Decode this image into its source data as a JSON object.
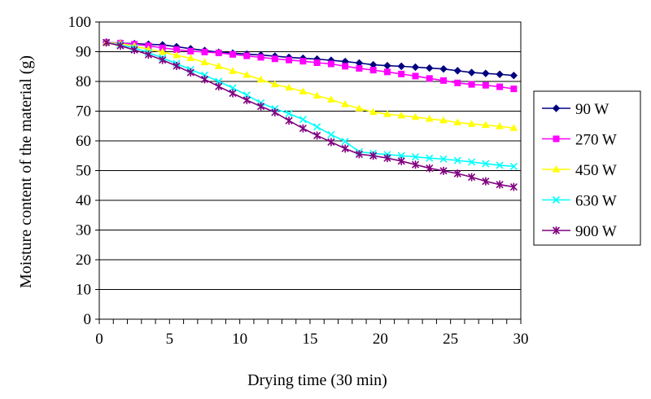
{
  "chart_data": {
    "type": "line",
    "xlabel": "Drying time (30 min)",
    "ylabel": "Moisture content of the material (g)",
    "xlim": [
      0,
      30
    ],
    "ylim": [
      0,
      100
    ],
    "xticks": [
      "0",
      "5",
      "10",
      "15",
      "20",
      "25",
      "30"
    ],
    "yticks": [
      "0",
      "10",
      "20",
      "30",
      "40",
      "50",
      "60",
      "70",
      "80",
      "90",
      "100"
    ],
    "grid": "horizontal",
    "legend_position": "right",
    "x": [
      0.5,
      1.5,
      2.5,
      3.5,
      4.5,
      5.5,
      6.5,
      7.5,
      8.5,
      9.5,
      10.5,
      11.5,
      12.5,
      13.5,
      14.5,
      15.5,
      16.5,
      17.5,
      18.5,
      19.5,
      20.5,
      21.5,
      22.5,
      23.5,
      24.5,
      25.5,
      26.5,
      27.5,
      28.5,
      29.5
    ],
    "series": [
      {
        "name": "90 W",
        "color": "#000080",
        "marker": "diamond",
        "values": [
          93.1,
          92.9,
          92.7,
          92.5,
          92.3,
          91.7,
          91.0,
          90.4,
          89.8,
          89.5,
          89.2,
          88.9,
          88.5,
          88.1,
          87.8,
          87.5,
          87.1,
          86.7,
          86.2,
          85.6,
          85.3,
          85.1,
          84.8,
          84.5,
          84.2,
          83.6,
          83.0,
          82.7,
          82.4,
          82.0
        ]
      },
      {
        "name": "270 W",
        "color": "#ff00ff",
        "marker": "square",
        "values": [
          93.1,
          92.9,
          92.5,
          92.0,
          91.3,
          90.7,
          90.2,
          89.9,
          89.6,
          89.1,
          88.6,
          88.1,
          87.6,
          87.2,
          86.8,
          86.3,
          85.9,
          85.1,
          84.4,
          83.8,
          83.2,
          82.5,
          81.8,
          81.0,
          80.3,
          79.5,
          79.0,
          78.7,
          78.2,
          77.5
        ]
      },
      {
        "name": "450 W",
        "color": "#ffff00",
        "marker": "triangle",
        "values": [
          93.1,
          92.7,
          91.9,
          90.8,
          89.9,
          88.8,
          87.8,
          86.4,
          85.1,
          83.5,
          82.2,
          80.6,
          79.0,
          77.9,
          76.6,
          75.2,
          73.9,
          72.3,
          70.9,
          69.7,
          69.0,
          68.5,
          68.0,
          67.4,
          66.9,
          66.2,
          65.7,
          65.3,
          64.9,
          64.3
        ]
      },
      {
        "name": "630 W",
        "color": "#00ffff",
        "marker": "x",
        "values": [
          93.1,
          92.3,
          91.3,
          89.7,
          87.9,
          86.0,
          84.0,
          82.1,
          80.0,
          77.8,
          75.4,
          72.8,
          70.8,
          69.2,
          67.2,
          64.7,
          62.1,
          59.8,
          56.3,
          55.8,
          55.4,
          55.0,
          54.6,
          54.2,
          53.9,
          53.4,
          52.9,
          52.3,
          51.8,
          51.4
        ]
      },
      {
        "name": "900 W",
        "color": "#800080",
        "marker": "star",
        "values": [
          93.1,
          92.0,
          90.6,
          89.0,
          87.2,
          85.2,
          83.0,
          80.7,
          78.3,
          76.0,
          73.7,
          71.6,
          69.6,
          66.8,
          64.2,
          61.8,
          59.6,
          57.4,
          55.5,
          55.0,
          54.2,
          53.2,
          52.0,
          50.8,
          49.9,
          49.0,
          47.8,
          46.4,
          45.3,
          44.5
        ]
      }
    ]
  }
}
